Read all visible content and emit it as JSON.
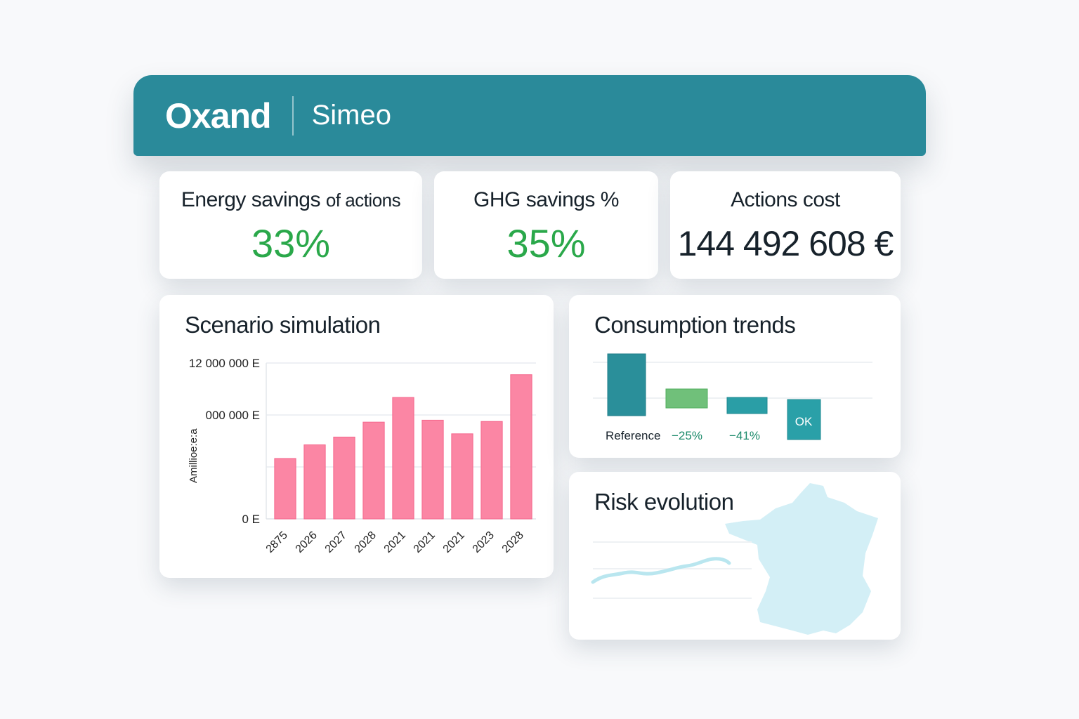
{
  "header": {
    "logo": "Oxand",
    "app_name": "Simeo"
  },
  "kpis": [
    {
      "title": "Energy savings",
      "title_small": "of actions",
      "value": "33%"
    },
    {
      "title": "GHG savings %",
      "value": "35%"
    },
    {
      "title": "Actions cost",
      "value": "144 492 608 €"
    }
  ],
  "colors": {
    "header": "#2a8a9a",
    "green": "#2aa84a",
    "bar": "#fb86a4",
    "teal": "#2a96a0"
  },
  "scenario": {
    "title": "Scenario simulation"
  },
  "chart_data": [
    {
      "type": "bar",
      "title": "Scenario simulation",
      "ylabel": "Amillioe:e:a",
      "y_ticks": [
        "12 000 000 E",
        "000 000 E",
        "0 E"
      ],
      "ylim": [
        0,
        12000000
      ],
      "categories": [
        "2875",
        "2026",
        "2027",
        "2028",
        "2021",
        "2021",
        "2021",
        "2023",
        "2028"
      ],
      "values": [
        4650000,
        5700000,
        6300000,
        7450000,
        9350000,
        7600000,
        6550000,
        7500000,
        11100000
      ]
    },
    {
      "type": "bar",
      "title": "Consumption trends",
      "categories": [
        "Reference",
        "−25%",
        "−41%",
        "OK"
      ]
    }
  ],
  "trends": {
    "title": "Consumption trends",
    "labels": [
      "Reference",
      "−25%",
      "−41%"
    ],
    "ok": "OK"
  },
  "risk": {
    "title": "Risk evolution"
  }
}
